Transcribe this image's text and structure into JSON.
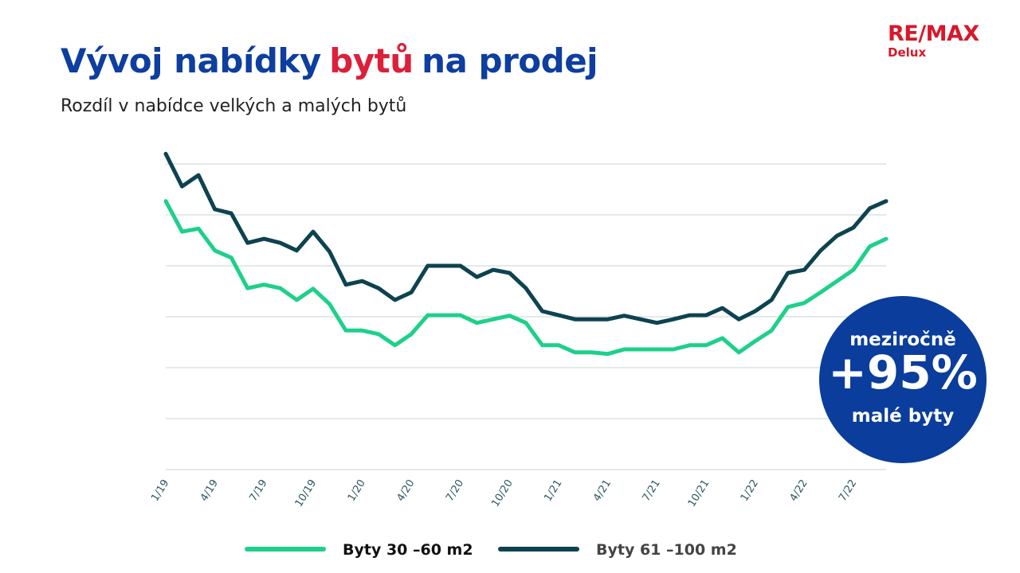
{
  "header": {
    "title": [
      "Vývoj nabídky",
      "bytů",
      "na prodej"
    ],
    "subtitle": "Rozdíl v nabídce velkých a malých bytů",
    "logo": "RE/MAX",
    "logo_sub": "Delux"
  },
  "badge": {
    "top": "meziročně",
    "value": "+95%",
    "bottom": "malé byty"
  },
  "chart_data": {
    "type": "line",
    "categories": [
      "1/19",
      null,
      null,
      "4/19",
      null,
      null,
      "7/19",
      null,
      null,
      "10/19",
      null,
      null,
      "1/20",
      null,
      null,
      "4/20",
      null,
      null,
      "7/20",
      null,
      null,
      "10/20",
      null,
      null,
      "1/21",
      null,
      null,
      "4/21",
      null,
      null,
      "7/21",
      null,
      null,
      "10/21",
      null,
      null,
      "1/22",
      null,
      null,
      "4/22",
      null,
      null,
      "7/22",
      null,
      null
    ],
    "series": [
      {
        "name": "Byty 30 –60 m2",
        "color": "#1ed08a",
        "values": [
          5.27,
          4.67,
          4.73,
          4.3,
          4.16,
          3.56,
          3.63,
          3.56,
          3.33,
          3.55,
          3.25,
          2.73,
          2.73,
          2.66,
          2.44,
          2.66,
          3.03,
          3.03,
          3.03,
          2.88,
          2.95,
          3.02,
          2.88,
          2.44,
          2.44,
          2.3,
          2.3,
          2.27,
          2.36,
          2.36,
          2.36,
          2.36,
          2.44,
          2.44,
          2.58,
          2.3,
          2.52,
          2.73,
          3.19,
          3.27,
          3.48,
          3.7,
          3.92,
          4.38,
          4.53
        ]
      },
      {
        "name": "Byty 61 –100 m2",
        "color": "#0d4350",
        "values": [
          6.2,
          5.56,
          5.78,
          5.11,
          5.03,
          4.45,
          4.53,
          4.45,
          4.3,
          4.67,
          4.28,
          3.63,
          3.7,
          3.56,
          3.33,
          3.48,
          4.0,
          4.0,
          4.0,
          3.78,
          3.92,
          3.86,
          3.56,
          3.11,
          3.03,
          2.95,
          2.95,
          2.95,
          3.02,
          2.95,
          2.88,
          2.95,
          3.03,
          3.03,
          3.17,
          2.95,
          3.11,
          3.33,
          3.86,
          3.92,
          4.3,
          4.59,
          4.75,
          5.13,
          5.27
        ]
      }
    ],
    "ylim": [
      0,
      6.25
    ],
    "yticks": [
      0,
      1,
      2,
      3,
      4,
      5,
      6
    ],
    "grid": true
  }
}
